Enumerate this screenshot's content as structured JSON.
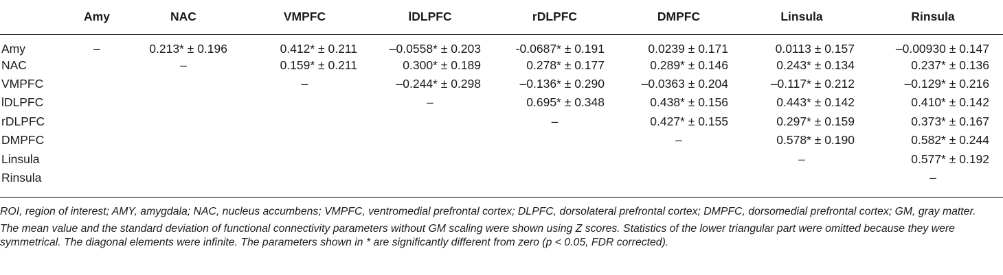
{
  "table": {
    "columns": [
      "",
      "Amy",
      "NAC",
      "VMPFC",
      "lDLPFC",
      "rDLPFC",
      "DMPFC",
      "Linsula",
      "Rinsula"
    ],
    "rows": [
      {
        "label": "Amy",
        "cells": [
          "–",
          "0.213* ± 0.196",
          "0.412* ± 0.211",
          "–0.0558* ± 0.203",
          "-0.0687* ± 0.191",
          "0.0239 ± 0.171",
          "0.0113 ± 0.157",
          "–0.00930 ± 0.147"
        ]
      },
      {
        "label": "NAC",
        "cells": [
          "",
          "–",
          "0.159* ± 0.211",
          "0.300* ± 0.189",
          "0.278* ± 0.177",
          "0.289* ± 0.146",
          "0.243* ± 0.134",
          "0.237* ± 0.136"
        ]
      },
      {
        "label": "VMPFC",
        "cells": [
          "",
          "",
          "–",
          "–0.244* ± 0.298",
          "–0.136* ± 0.290",
          "–0.0363 ± 0.204",
          "–0.117* ± 0.212",
          "–0.129* ± 0.216"
        ]
      },
      {
        "label": "lDLPFC",
        "cells": [
          "",
          "",
          "",
          "–",
          "0.695* ± 0.348",
          "0.438* ± 0.156",
          "0.443* ± 0.142",
          "0.410* ± 0.142"
        ]
      },
      {
        "label": "rDLPFC",
        "cells": [
          "",
          "",
          "",
          "",
          "–",
          "0.427* ± 0.155",
          "0.297* ± 0.159",
          "0.373* ± 0.167"
        ]
      },
      {
        "label": "DMPFC",
        "cells": [
          "",
          "",
          "",
          "",
          "",
          "–",
          "0.578* ± 0.190",
          "0.582* ± 0.244"
        ]
      },
      {
        "label": "Linsula",
        "cells": [
          "",
          "",
          "",
          "",
          "",
          "",
          "–",
          "0.577* ± 0.192"
        ]
      },
      {
        "label": "Rinsula",
        "cells": [
          "",
          "",
          "",
          "",
          "",
          "",
          "",
          "–"
        ]
      }
    ]
  },
  "footnotes": {
    "abbreviations": "ROI, region of interest; AMY, amygdala; NAC, nucleus accumbens; VMPFC, ventromedial prefrontal cortex; DLPFC, dorsolateral prefrontal cortex; DMPFC, dorsomedial prefrontal cortex; GM, gray matter.",
    "description": "The mean value and the standard deviation of functional connectivity parameters without GM scaling were shown using Z scores. Statistics of the lower triangular part were omitted because they were symmetrical. The diagonal elements were infinite. The parameters shown in * are significantly different from zero (p < 0.05, FDR corrected)."
  }
}
